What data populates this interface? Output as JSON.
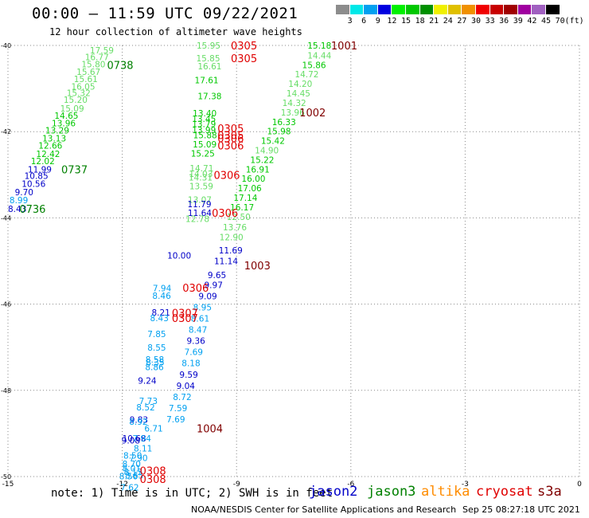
{
  "title": "00:00 – 11:59 UTC 09/22/2021",
  "subtitle": "12 hour collection of altimeter wave heights",
  "colorbar": {
    "labels": [
      "3",
      "6",
      "9",
      "12",
      "15",
      "18",
      "21",
      "24",
      "27",
      "30",
      "33",
      "36",
      "39",
      "42",
      "45",
      "70"
    ],
    "unit": "(ft)",
    "colors": [
      "#8c8c8c",
      "#00e8e8",
      "#00a0f0",
      "#0000e0",
      "#00f000",
      "#00c800",
      "#009000",
      "#f0f000",
      "#e0c000",
      "#f09000",
      "#f00000",
      "#c80000",
      "#a00000",
      "#a000a0",
      "#a060c0",
      "#000000"
    ]
  },
  "axes": {
    "lat_ticks": [
      "-40",
      "-42",
      "-44",
      "-46",
      "-48",
      "-50"
    ],
    "lon_ticks": [
      "-15",
      "-12",
      "-9",
      "-6",
      "-3",
      "0"
    ]
  },
  "chart_data": {
    "type": "scatter",
    "x_label": "longitude",
    "y_label": "latitude",
    "xlim": [
      -15,
      0
    ],
    "ylim": [
      -50,
      -40
    ],
    "series_colors": {
      "jason2": "#0000c8",
      "jason3": "#008000",
      "altika": "#ff8c00",
      "cryosat": "#e00000",
      "s3a": "#800000"
    },
    "swh_colors": {
      "6": "#00a0f0",
      "9": "#0000c8",
      "12": "#00c800",
      "15": "#66dd66"
    },
    "points": [
      {
        "lon": -12.85,
        "lat": -40.11,
        "value": "17.59",
        "band": 15
      },
      {
        "lon": -12.98,
        "lat": -40.27,
        "value": "16.77",
        "band": 15
      },
      {
        "lon": -13.07,
        "lat": -40.43,
        "value": "15.80",
        "band": 15
      },
      {
        "lon": -13.2,
        "lat": -40.61,
        "value": "15.67",
        "band": 15
      },
      {
        "lon": -13.27,
        "lat": -40.78,
        "value": "15.61",
        "band": 15
      },
      {
        "lon": -13.34,
        "lat": -40.95,
        "value": "16.05",
        "band": 15
      },
      {
        "lon": -13.46,
        "lat": -41.1,
        "value": "15.32",
        "band": 15
      },
      {
        "lon": -13.54,
        "lat": -41.26,
        "value": "15.20",
        "band": 15
      },
      {
        "lon": -13.63,
        "lat": -41.46,
        "value": "15.09",
        "band": 15
      },
      {
        "lon": -13.78,
        "lat": -41.63,
        "value": "14.65",
        "band": 12
      },
      {
        "lon": -13.85,
        "lat": -41.8,
        "value": "13.96",
        "band": 12
      },
      {
        "lon": -14.02,
        "lat": -41.97,
        "value": "13.29",
        "band": 12
      },
      {
        "lon": -14.1,
        "lat": -42.15,
        "value": "13.13",
        "band": 12
      },
      {
        "lon": -14.2,
        "lat": -42.32,
        "value": "12.66",
        "band": 12
      },
      {
        "lon": -14.26,
        "lat": -42.51,
        "value": "12.42",
        "band": 12
      },
      {
        "lon": -14.4,
        "lat": -42.68,
        "value": "12.02",
        "band": 12
      },
      {
        "lon": -14.48,
        "lat": -42.87,
        "value": "11.99",
        "band": 9
      },
      {
        "lon": -14.57,
        "lat": -43.02,
        "value": "10.85",
        "band": 9
      },
      {
        "lon": -14.64,
        "lat": -43.21,
        "value": "10.56",
        "band": 9
      },
      {
        "lon": -14.82,
        "lat": -43.4,
        "value": "9.70",
        "band": 9
      },
      {
        "lon": -14.96,
        "lat": -43.59,
        "value": "8.99",
        "band": 6
      },
      {
        "lon": -15.0,
        "lat": -43.79,
        "value": "8.43",
        "band": 9
      },
      {
        "lon": -10.05,
        "lat": -40.0,
        "value": "15.95",
        "band": 15
      },
      {
        "lon": -10.06,
        "lat": -40.3,
        "value": "15.85",
        "band": 15
      },
      {
        "lon": -10.02,
        "lat": -40.48,
        "value": "16.61",
        "band": 15
      },
      {
        "lon": -10.1,
        "lat": -40.8,
        "value": "17.61",
        "band": 12
      },
      {
        "lon": -10.02,
        "lat": -41.17,
        "value": "17.38",
        "band": 12
      },
      {
        "lon": -10.15,
        "lat": -41.57,
        "value": "13.40",
        "band": 12
      },
      {
        "lon": -10.17,
        "lat": -41.7,
        "value": "13.45",
        "band": 12
      },
      {
        "lon": -10.17,
        "lat": -41.82,
        "value": "13.79",
        "band": 12
      },
      {
        "lon": -10.17,
        "lat": -41.96,
        "value": "13.99",
        "band": 12
      },
      {
        "lon": -10.14,
        "lat": -42.08,
        "value": "15.88",
        "band": 12
      },
      {
        "lon": -10.15,
        "lat": -42.29,
        "value": "15.09",
        "band": 12
      },
      {
        "lon": -10.2,
        "lat": -42.5,
        "value": "15.25",
        "band": 12
      },
      {
        "lon": -10.23,
        "lat": -42.85,
        "value": "14.71",
        "band": 15
      },
      {
        "lon": -10.25,
        "lat": -42.98,
        "value": "14.03",
        "band": 15
      },
      {
        "lon": -10.26,
        "lat": -43.06,
        "value": "14.31",
        "band": 15
      },
      {
        "lon": -10.24,
        "lat": -43.26,
        "value": "13.59",
        "band": 15
      },
      {
        "lon": -10.28,
        "lat": -43.58,
        "value": "13.07",
        "band": 15
      },
      {
        "lon": -10.29,
        "lat": -43.68,
        "value": "11.79",
        "band": 9
      },
      {
        "lon": -10.28,
        "lat": -43.88,
        "value": "11.64",
        "band": 9
      },
      {
        "lon": -10.34,
        "lat": -44.02,
        "value": "12.78",
        "band": 15
      },
      {
        "lon": -10.82,
        "lat": -44.87,
        "value": "10.00",
        "band": 9
      },
      {
        "lon": -11.2,
        "lat": -45.63,
        "value": "7.94",
        "band": 6
      },
      {
        "lon": -11.21,
        "lat": -45.8,
        "value": "8.46",
        "band": 6
      },
      {
        "lon": -11.23,
        "lat": -46.19,
        "value": "8.21",
        "band": 9
      },
      {
        "lon": -11.27,
        "lat": -46.32,
        "value": "8.43",
        "band": 6
      },
      {
        "lon": -11.34,
        "lat": -46.69,
        "value": "7.85",
        "band": 6
      },
      {
        "lon": -11.34,
        "lat": -47.01,
        "value": "8.55",
        "band": 6
      },
      {
        "lon": -11.39,
        "lat": -47.28,
        "value": "8.58",
        "band": 6
      },
      {
        "lon": -11.38,
        "lat": -47.35,
        "value": "8.35",
        "band": 6
      },
      {
        "lon": -11.4,
        "lat": -47.46,
        "value": "8.86",
        "band": 6
      },
      {
        "lon": -11.59,
        "lat": -47.77,
        "value": "9.24",
        "band": 9
      },
      {
        "lon": -11.56,
        "lat": -48.24,
        "value": "7.73",
        "band": 6
      },
      {
        "lon": -11.63,
        "lat": -48.39,
        "value": "8.52",
        "band": 6
      },
      {
        "lon": -11.81,
        "lat": -48.68,
        "value": "9.83",
        "band": 9
      },
      {
        "lon": -11.82,
        "lat": -48.72,
        "value": "8.92",
        "band": 6
      },
      {
        "lon": -11.42,
        "lat": -48.88,
        "value": "6.71",
        "band": 6
      },
      {
        "lon": -12.0,
        "lat": -49.11,
        "value": "10.68",
        "band": 9
      },
      {
        "lon": -11.73,
        "lat": -49.11,
        "value": "7.94",
        "band": 6
      },
      {
        "lon": -12.02,
        "lat": -49.16,
        "value": "9.08",
        "band": 9
      },
      {
        "lon": -11.7,
        "lat": -49.34,
        "value": "8.11",
        "band": 6
      },
      {
        "lon": -11.97,
        "lat": -49.51,
        "value": "8.50",
        "band": 6
      },
      {
        "lon": -11.82,
        "lat": -49.57,
        "value": "7.90",
        "band": 6
      },
      {
        "lon": -12.0,
        "lat": -49.7,
        "value": "8.70",
        "band": 6
      },
      {
        "lon": -12.0,
        "lat": -49.81,
        "value": "8.01",
        "band": 6
      },
      {
        "lon": -11.96,
        "lat": -49.89,
        "value": "8.13",
        "band": 6
      },
      {
        "lon": -11.93,
        "lat": -49.97,
        "value": "8.65",
        "band": 6
      },
      {
        "lon": -12.08,
        "lat": -49.99,
        "value": "8.56",
        "band": 6
      },
      {
        "lon": -12.05,
        "lat": -50.25,
        "value": "7.62",
        "band": 6
      },
      {
        "lon": -7.14,
        "lat": -40.0,
        "value": "15.18",
        "band": 12
      },
      {
        "lon": -7.14,
        "lat": -40.23,
        "value": "14.44",
        "band": 15
      },
      {
        "lon": -7.28,
        "lat": -40.45,
        "value": "15.86",
        "band": 12
      },
      {
        "lon": -7.47,
        "lat": -40.67,
        "value": "14.72",
        "band": 15
      },
      {
        "lon": -7.64,
        "lat": -40.89,
        "value": "14.20",
        "band": 15
      },
      {
        "lon": -7.69,
        "lat": -41.11,
        "value": "14.45",
        "band": 15
      },
      {
        "lon": -7.8,
        "lat": -41.33,
        "value": "14.32",
        "band": 15
      },
      {
        "lon": -7.84,
        "lat": -41.55,
        "value": "13.96",
        "band": 15
      },
      {
        "lon": -8.07,
        "lat": -41.77,
        "value": "16.33",
        "band": 12
      },
      {
        "lon": -8.2,
        "lat": -41.99,
        "value": "15.98",
        "band": 12
      },
      {
        "lon": -8.36,
        "lat": -42.21,
        "value": "15.42",
        "band": 12
      },
      {
        "lon": -8.52,
        "lat": -42.43,
        "value": "14.90",
        "band": 15
      },
      {
        "lon": -8.64,
        "lat": -42.65,
        "value": "15.22",
        "band": 12
      },
      {
        "lon": -8.76,
        "lat": -42.87,
        "value": "16.91",
        "band": 12
      },
      {
        "lon": -8.87,
        "lat": -43.09,
        "value": "16.00",
        "band": 12
      },
      {
        "lon": -8.97,
        "lat": -43.31,
        "value": "17.06",
        "band": 12
      },
      {
        "lon": -9.08,
        "lat": -43.53,
        "value": "17.14",
        "band": 12
      },
      {
        "lon": -9.17,
        "lat": -43.75,
        "value": "16.17",
        "band": 12
      },
      {
        "lon": -9.26,
        "lat": -43.97,
        "value": "12.50",
        "band": 15
      },
      {
        "lon": -9.36,
        "lat": -44.21,
        "value": "13.76",
        "band": 15
      },
      {
        "lon": -9.45,
        "lat": -44.45,
        "value": "12.90",
        "band": 15
      },
      {
        "lon": -9.47,
        "lat": -44.75,
        "value": "11.69",
        "band": 9
      },
      {
        "lon": -9.59,
        "lat": -45.0,
        "value": "11.14",
        "band": 9
      },
      {
        "lon": -9.76,
        "lat": -45.32,
        "value": "9.65",
        "band": 9
      },
      {
        "lon": -9.85,
        "lat": -45.55,
        "value": "9.97",
        "band": 9
      },
      {
        "lon": -10.0,
        "lat": -45.81,
        "value": "9.09",
        "band": 9
      },
      {
        "lon": -10.14,
        "lat": -46.07,
        "value": "8.95",
        "band": 6
      },
      {
        "lon": -10.2,
        "lat": -46.33,
        "value": "8.61",
        "band": 6
      },
      {
        "lon": -10.26,
        "lat": -46.59,
        "value": "8.47",
        "band": 6
      },
      {
        "lon": -10.31,
        "lat": -46.85,
        "value": "9.36",
        "band": 9
      },
      {
        "lon": -10.37,
        "lat": -47.11,
        "value": "7.69",
        "band": 6
      },
      {
        "lon": -10.44,
        "lat": -47.37,
        "value": "8.18",
        "band": 6
      },
      {
        "lon": -10.5,
        "lat": -47.63,
        "value": "9.59",
        "band": 9
      },
      {
        "lon": -10.58,
        "lat": -47.89,
        "value": "9.04",
        "band": 9
      },
      {
        "lon": -10.67,
        "lat": -48.15,
        "value": "8.72",
        "band": 6
      },
      {
        "lon": -10.78,
        "lat": -48.41,
        "value": "7.59",
        "band": 6
      },
      {
        "lon": -10.84,
        "lat": -48.67,
        "value": "7.69",
        "band": 6
      }
    ],
    "passes": [
      {
        "label": "0738",
        "lon": -12.4,
        "lat": -40.45,
        "sat": "jason3"
      },
      {
        "label": "0737",
        "lon": -13.6,
        "lat": -42.87,
        "sat": "jason3"
      },
      {
        "label": "0736",
        "lon": -14.7,
        "lat": -43.79,
        "sat": "jason3"
      },
      {
        "label": "0305",
        "lon": -9.15,
        "lat": -40.0,
        "sat": "cryosat"
      },
      {
        "label": "0305",
        "lon": -9.15,
        "lat": -40.3,
        "sat": "cryosat"
      },
      {
        "label": "0305",
        "lon": -9.5,
        "lat": -41.92,
        "sat": "cryosat"
      },
      {
        "label": "0305",
        "lon": -9.5,
        "lat": -42.08,
        "sat": "cryosat"
      },
      {
        "label": "0306",
        "lon": -9.5,
        "lat": -42.15,
        "sat": "cryosat"
      },
      {
        "label": "0306",
        "lon": -9.5,
        "lat": -42.32,
        "sat": "cryosat"
      },
      {
        "label": "0306",
        "lon": -9.6,
        "lat": -43.0,
        "sat": "cryosat"
      },
      {
        "label": "0306",
        "lon": -9.65,
        "lat": -43.88,
        "sat": "cryosat"
      },
      {
        "label": "0306",
        "lon": -10.42,
        "lat": -45.62,
        "sat": "cryosat"
      },
      {
        "label": "0307",
        "lon": -10.7,
        "lat": -46.2,
        "sat": "cryosat"
      },
      {
        "label": "0307",
        "lon": -10.7,
        "lat": -46.32,
        "sat": "cryosat"
      },
      {
        "label": "0308",
        "lon": -11.54,
        "lat": -49.86,
        "sat": "cryosat"
      },
      {
        "label": "0308",
        "lon": -11.54,
        "lat": -50.06,
        "sat": "cryosat"
      },
      {
        "label": "1001",
        "lon": -6.52,
        "lat": -40.0,
        "sat": "s3a"
      },
      {
        "label": "1002",
        "lon": -7.35,
        "lat": -41.55,
        "sat": "s3a"
      },
      {
        "label": "1003",
        "lon": -8.8,
        "lat": -45.1,
        "sat": "s3a"
      },
      {
        "label": "1004",
        "lon": -10.05,
        "lat": -48.88,
        "sat": "s3a"
      }
    ]
  },
  "note": "note: 1) Time is in UTC; 2) SWH is in feet",
  "legend": {
    "jason2": "jason2",
    "jason3": "jason3",
    "altika": "altika",
    "cryosat": "cryosat",
    "s3a": "s3a"
  },
  "credit": "NOAA/NESDIS Center for Satellite Applications and Research",
  "timestamp": "Sep 25 08:27:18 UTC 2021"
}
